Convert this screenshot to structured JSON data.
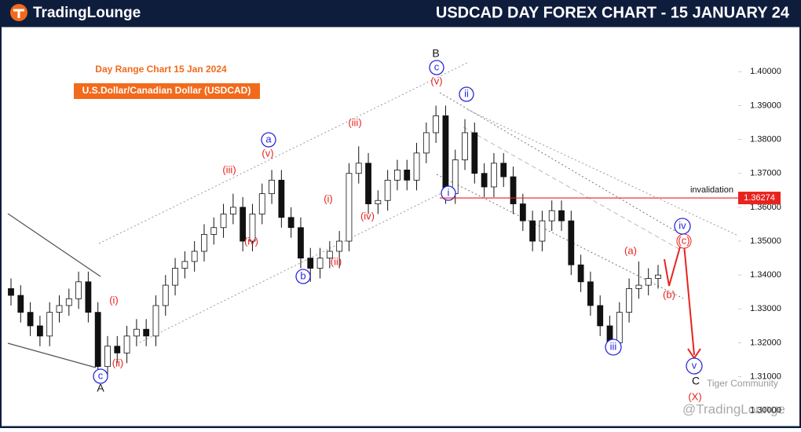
{
  "header": {
    "logo": "TradingLounge"
  },
  "chart_data": {
    "type": "candlestick",
    "title": "USDCAD DAY FOREX CHART - 15 JANUARY 24",
    "subtitle": "Day Range Chart 15 Jan 2024",
    "instrument": "U.S.Dollar/Canadian Dollar (USDCAD)",
    "up_color": "#ffffff",
    "down_color": "#111111",
    "outline_color": "#111111",
    "open": [
      1.336,
      1.334,
      1.329,
      1.325,
      1.322,
      1.329,
      1.331,
      1.333,
      1.338,
      1.329,
      1.313,
      1.319,
      1.317,
      1.322,
      1.324,
      1.322,
      1.331,
      1.337,
      1.342,
      1.344,
      1.347,
      1.352,
      1.354,
      1.358,
      1.36,
      1.35,
      1.358,
      1.364,
      1.368,
      1.357,
      1.354,
      1.345,
      1.342,
      1.345,
      1.347,
      1.35,
      1.37,
      1.373,
      1.361,
      1.362,
      1.368,
      1.371,
      1.368,
      1.376,
      1.382,
      1.387,
      1.364,
      1.374,
      1.382,
      1.37,
      1.366,
      1.373,
      1.369,
      1.361,
      1.356,
      1.35,
      1.356,
      1.359,
      1.356,
      1.343,
      1.338,
      1.331,
      1.325,
      1.32,
      1.329,
      1.336,
      1.337,
      1.339
    ],
    "high": [
      1.339,
      1.337,
      1.332,
      1.328,
      1.332,
      1.334,
      1.336,
      1.341,
      1.341,
      1.332,
      1.322,
      1.322,
      1.325,
      1.327,
      1.327,
      1.334,
      1.34,
      1.345,
      1.347,
      1.35,
      1.355,
      1.357,
      1.361,
      1.364,
      1.363,
      1.361,
      1.367,
      1.371,
      1.371,
      1.36,
      1.357,
      1.348,
      1.348,
      1.35,
      1.353,
      1.373,
      1.378,
      1.376,
      1.365,
      1.371,
      1.374,
      1.374,
      1.379,
      1.385,
      1.39,
      1.39,
      1.377,
      1.386,
      1.385,
      1.373,
      1.376,
      1.376,
      1.372,
      1.364,
      1.359,
      1.359,
      1.362,
      1.362,
      1.359,
      1.346,
      1.341,
      1.334,
      1.328,
      1.332,
      1.339,
      1.344,
      1.342,
      1.343
    ],
    "low": [
      1.331,
      1.326,
      1.322,
      1.319,
      1.319,
      1.326,
      1.328,
      1.33,
      1.326,
      1.309,
      1.31,
      1.314,
      1.314,
      1.319,
      1.319,
      1.319,
      1.328,
      1.334,
      1.339,
      1.341,
      1.344,
      1.349,
      1.351,
      1.355,
      1.347,
      1.347,
      1.355,
      1.361,
      1.354,
      1.351,
      1.342,
      1.338,
      1.339,
      1.342,
      1.342,
      1.347,
      1.367,
      1.358,
      1.358,
      1.359,
      1.365,
      1.365,
      1.365,
      1.373,
      1.379,
      1.361,
      1.361,
      1.371,
      1.367,
      1.363,
      1.363,
      1.366,
      1.358,
      1.353,
      1.347,
      1.347,
      1.353,
      1.353,
      1.34,
      1.335,
      1.328,
      1.322,
      1.317,
      1.317,
      1.326,
      1.333,
      1.334,
      1.336
    ],
    "close": [
      1.334,
      1.329,
      1.325,
      1.322,
      1.329,
      1.331,
      1.333,
      1.338,
      1.329,
      1.313,
      1.319,
      1.317,
      1.322,
      1.324,
      1.322,
      1.331,
      1.337,
      1.342,
      1.344,
      1.347,
      1.352,
      1.354,
      1.358,
      1.36,
      1.35,
      1.358,
      1.364,
      1.368,
      1.357,
      1.354,
      1.345,
      1.342,
      1.345,
      1.347,
      1.35,
      1.37,
      1.373,
      1.361,
      1.362,
      1.368,
      1.371,
      1.368,
      1.376,
      1.382,
      1.387,
      1.364,
      1.374,
      1.382,
      1.37,
      1.366,
      1.373,
      1.369,
      1.361,
      1.356,
      1.35,
      1.356,
      1.359,
      1.356,
      1.343,
      1.338,
      1.331,
      1.325,
      1.32,
      1.329,
      1.336,
      1.337,
      1.339,
      1.34
    ],
    "ylim": [
      1.296,
      1.4105
    ],
    "yticks": [
      {
        "value": 1.4,
        "label": "1.40000"
      },
      {
        "value": 1.39,
        "label": "1.39000"
      },
      {
        "value": 1.38,
        "label": "1.38000"
      },
      {
        "value": 1.37,
        "label": "1.37000"
      },
      {
        "value": 1.36,
        "label": "1.36000"
      },
      {
        "value": 1.35,
        "label": "1.35000"
      },
      {
        "value": 1.34,
        "label": "1.34000"
      },
      {
        "value": 1.33,
        "label": "1.33000"
      },
      {
        "value": 1.32,
        "label": "1.32000"
      },
      {
        "value": 1.31,
        "label": "1.31000"
      },
      {
        "value": 1.3,
        "label": "1.30000"
      }
    ],
    "invalidation": {
      "value": 1.36274,
      "label": "1.36274",
      "text": "invalidation",
      "color": "#e8231f"
    },
    "annotations": [
      "B",
      "c",
      "(v)",
      "ii",
      "a",
      "(v)",
      "(iii)",
      "(iii)",
      "(iv)",
      "(i)",
      "(iv)",
      "(ii)",
      "b",
      "i",
      "(i)",
      "(ii)",
      "c",
      "A",
      "iii",
      "(a)",
      "(b)",
      "(c)",
      "iv",
      "v",
      "C",
      "(X)"
    ],
    "watermarks": [
      "Tiger Community",
      "@TradingLounge"
    ]
  }
}
